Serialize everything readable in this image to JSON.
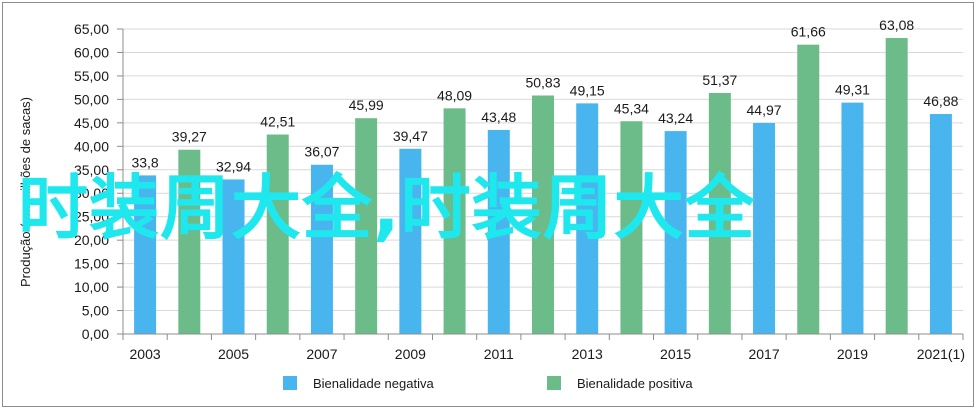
{
  "chart_data": {
    "type": "bar",
    "ylabel": "Produção (em milhões de sacas)",
    "ylim": [
      0,
      65
    ],
    "ytick_step": 5,
    "ytick_labels": [
      "0,00",
      "5,00",
      "10,00",
      "15,00",
      "20,00",
      "25,00",
      "30,00",
      "35,00",
      "40,00",
      "45,00",
      "50,00",
      "55,00",
      "60,00",
      "65,00"
    ],
    "xtick_labels": [
      "2003",
      "2005",
      "2007",
      "2009",
      "2011",
      "2013",
      "2015",
      "2017",
      "2019",
      "2021(1)"
    ],
    "grid": true,
    "legend": "bottom",
    "series": [
      {
        "name": "Bienalidade negativa",
        "color": "#49b5ee",
        "x": [
          "2003",
          "2005",
          "2007",
          "2009",
          "2011",
          "2013",
          "2015",
          "2017",
          "2019",
          "2021(1)"
        ],
        "values": [
          33.8,
          32.94,
          36.07,
          39.47,
          43.48,
          49.15,
          43.24,
          44.97,
          49.31,
          46.88
        ],
        "labels": [
          "33,8",
          "32,94",
          "36,07",
          "39,47",
          "43,48",
          "49,15",
          "43,24",
          "44,97",
          "49,31",
          "46,88"
        ]
      },
      {
        "name": "Bienalidade positiva",
        "color": "#6cbc8a",
        "x": [
          "2004",
          "2006",
          "2008",
          "2010",
          "2012",
          "2014",
          "2016",
          "2018",
          "2020"
        ],
        "values": [
          39.27,
          42.51,
          45.99,
          48.09,
          50.83,
          45.34,
          51.37,
          61.66,
          63.08
        ],
        "labels": [
          "39,27",
          "42,51",
          "45,99",
          "48,09",
          "50,83",
          "45,34",
          "51,37",
          "61,66",
          "63,08"
        ]
      }
    ]
  },
  "overlay": {
    "text": "时装周大全,时装周大全"
  }
}
